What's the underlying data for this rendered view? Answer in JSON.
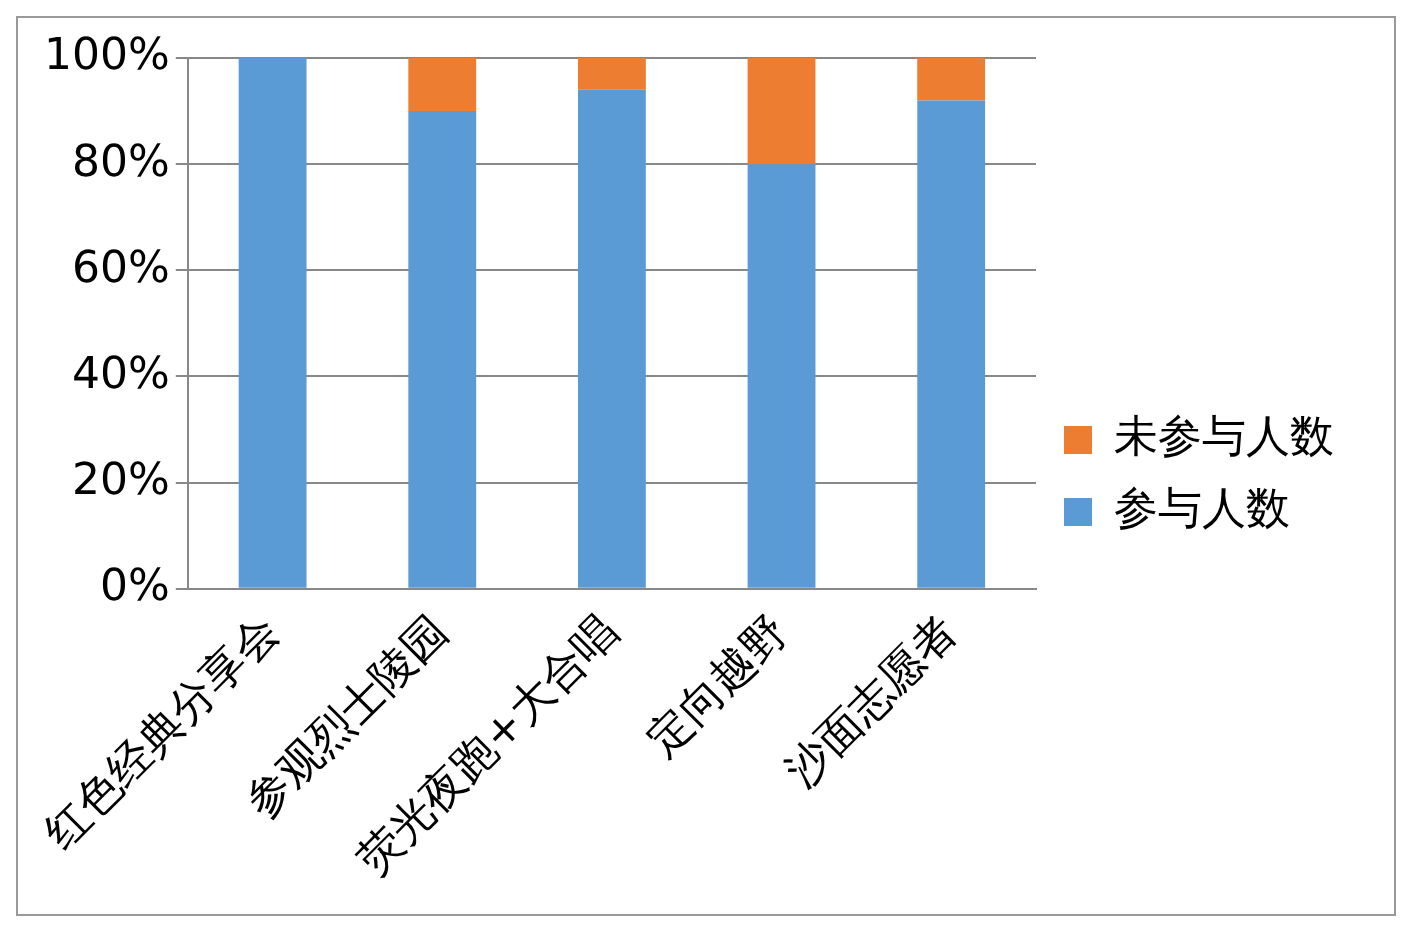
{
  "chart_data": {
    "type": "bar",
    "stacked": true,
    "categories": [
      "红色经典分享会",
      "参观烈士陵园",
      "荧光夜跑+大合唱",
      "定向越野",
      "沙面志愿者"
    ],
    "series": [
      {
        "name": "参与人数",
        "color": "#5b9bd5",
        "values": [
          100,
          90,
          94,
          80,
          92
        ]
      },
      {
        "name": "未参与人数",
        "color": "#ed7d31",
        "values": [
          0,
          10,
          6,
          20,
          8
        ]
      }
    ],
    "ylim": [
      0,
      100
    ],
    "yticks": [
      {
        "value": 0,
        "label": "0%"
      },
      {
        "value": 20,
        "label": "20%"
      },
      {
        "value": 40,
        "label": "40%"
      },
      {
        "value": 60,
        "label": "60%"
      },
      {
        "value": 80,
        "label": "80%"
      },
      {
        "value": 100,
        "label": "100%"
      }
    ],
    "grid": "y",
    "legend": "right"
  }
}
